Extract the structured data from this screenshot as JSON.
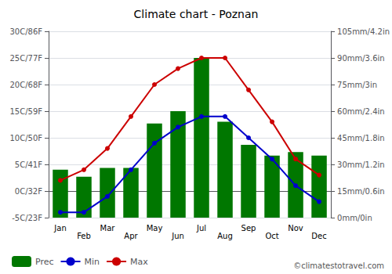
{
  "chart_data": {
    "type": "bar",
    "title": "Climate chart - Poznan",
    "categories": [
      "Jan",
      "Feb",
      "Mar",
      "Apr",
      "May",
      "Jun",
      "Jul",
      "Aug",
      "Sep",
      "Oct",
      "Nov",
      "Dec"
    ],
    "series": [
      {
        "name": "Prec",
        "type": "bar",
        "axis": "y2",
        "color": "#007700",
        "values": [
          27,
          23,
          28,
          28,
          53,
          60,
          90,
          54,
          41,
          35,
          37,
          35
        ]
      },
      {
        "name": "Min",
        "type": "line",
        "marker": "circle",
        "color": "#0000cc",
        "values": [
          -4,
          -4,
          -1,
          4,
          9,
          12,
          14,
          14,
          10,
          6,
          1,
          -2
        ]
      },
      {
        "name": "Max",
        "type": "line",
        "marker": "circle",
        "color": "#cc0000",
        "values": [
          2,
          4,
          8,
          14,
          20,
          23,
          25,
          25,
          19,
          13,
          6,
          3
        ]
      }
    ],
    "ylim": [
      -5,
      30
    ],
    "yticks": [
      {
        "value": -5,
        "label": "-5C/23F"
      },
      {
        "value": 0,
        "label": "0C/32F"
      },
      {
        "value": 5,
        "label": "5C/41F"
      },
      {
        "value": 10,
        "label": "10C/50F"
      },
      {
        "value": 15,
        "label": "15C/59F"
      },
      {
        "value": 20,
        "label": "20C/68F"
      },
      {
        "value": 25,
        "label": "25C/77F"
      },
      {
        "value": 30,
        "label": "30C/86F"
      }
    ],
    "y2lim": [
      0,
      105
    ],
    "y2ticks": [
      {
        "value": 0,
        "label": "0mm/0in"
      },
      {
        "value": 15,
        "label": "15mm/0.6in"
      },
      {
        "value": 30,
        "label": "30mm/1.2in"
      },
      {
        "value": 45,
        "label": "45mm/1.8in"
      },
      {
        "value": 60,
        "label": "60mm/2.4in"
      },
      {
        "value": 75,
        "label": "75mm/3in"
      },
      {
        "value": 90,
        "label": "90mm/3.6in"
      },
      {
        "value": 105,
        "label": "105mm/4.2in"
      }
    ],
    "grid": true,
    "legend": "bottom-left",
    "annotations": [
      {
        "text": "©climatestotravel.com"
      }
    ]
  }
}
